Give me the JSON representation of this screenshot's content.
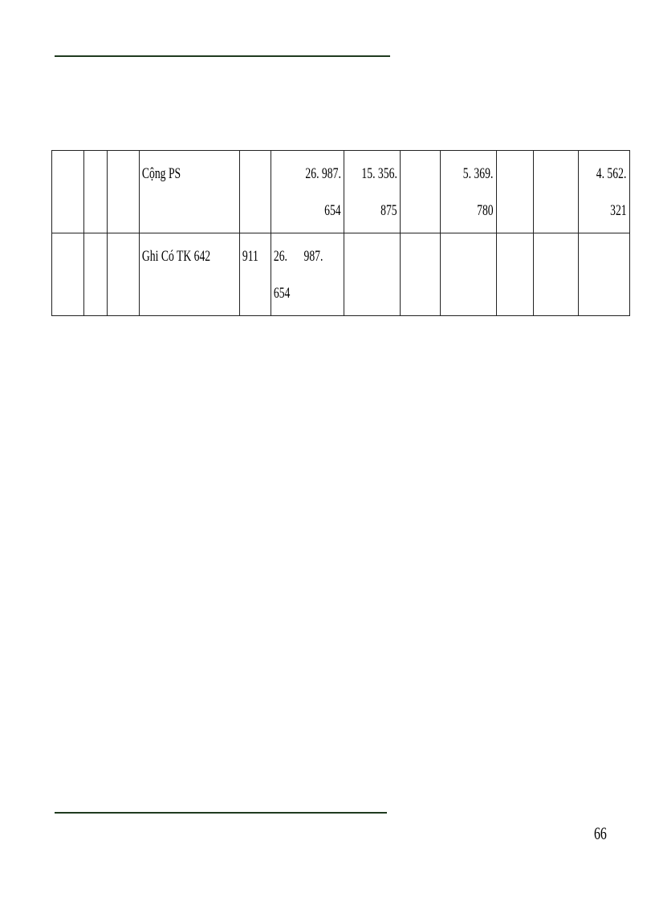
{
  "table": {
    "rows": [
      {
        "cells": [
          "",
          "",
          "",
          "Cộng PS",
          "",
          [
            "26. 987.",
            "654"
          ],
          [
            "15. 356.",
            "875"
          ],
          "",
          [
            "5. 369.",
            "780"
          ],
          "",
          "",
          [
            "4. 562.",
            "321"
          ]
        ]
      },
      {
        "cells": [
          "",
          "",
          "",
          "Ghi Có TK 642",
          "911",
          [
            "26.      987.",
            "654"
          ],
          "",
          "",
          "",
          "",
          "",
          ""
        ]
      }
    ]
  },
  "page_number": "66"
}
